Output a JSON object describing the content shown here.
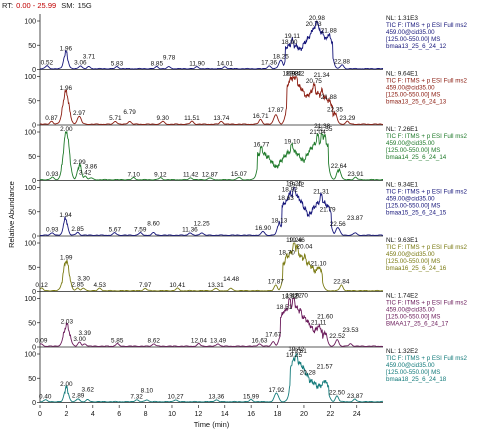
{
  "header": {
    "rt_label": "RT:",
    "rt_value": "0.00 - 25.99",
    "sm_label": "SM:",
    "sm_value": "15G"
  },
  "chart_data": {
    "type": "line",
    "xlabel": "Time (min)",
    "ylabel": "Relative Abundance",
    "xlim": [
      0,
      25.99
    ],
    "x_ticks": [
      0,
      2,
      4,
      6,
      8,
      10,
      12,
      14,
      16,
      18,
      20,
      22,
      24
    ],
    "y_ticks": [
      0,
      50,
      100
    ],
    "ylim": [
      0,
      100
    ],
    "grid": false,
    "panels": [
      {
        "color": "#15157a",
        "nl": "NL: 1.31E3",
        "info": [
          "TIC F: ITMS + p ESI Full ms2",
          "459.00@cid35.00",
          "[125.00-550.00]  MS",
          "bmaa13_25_6_24_12"
        ],
        "peaks": [
          {
            "x": 0.52,
            "y": 6,
            "label": "0.52"
          },
          {
            "x": 1.96,
            "y": 35,
            "label": "1.96"
          },
          {
            "x": 3.06,
            "y": 6,
            "label": "3.06"
          },
          {
            "x": 3.71,
            "y": 4,
            "label": "3.71"
          },
          {
            "x": 5.83,
            "y": 4,
            "label": "5.83"
          },
          {
            "x": 8.85,
            "y": 4,
            "label": "8.85"
          },
          {
            "x": 9.78,
            "y": 4,
            "label": "9.78"
          },
          {
            "x": 11.9,
            "y": 4,
            "label": "11.90"
          },
          {
            "x": 14.01,
            "y": 4,
            "label": "14.01"
          },
          {
            "x": 17.36,
            "y": 6,
            "label": "17.36"
          },
          {
            "x": 18.25,
            "y": 18,
            "label": "18.25"
          },
          {
            "x": 18.9,
            "y": 48,
            "label": "18.90"
          },
          {
            "x": 19.11,
            "y": 60,
            "label": "19.11"
          },
          {
            "x": 20.73,
            "y": 86,
            "label": "20.73"
          },
          {
            "x": 20.98,
            "y": 100,
            "label": "20.98"
          },
          {
            "x": 21.88,
            "y": 72,
            "label": "21.88"
          },
          {
            "x": 22.88,
            "y": 8,
            "label": "22.88"
          }
        ]
      },
      {
        "color": "#8a1a0e",
        "nl": "NL: 9.64E1",
        "info": [
          "TIC F: ITMS + p ESI Full ms2",
          "459.00@cid35.00",
          "[125.00-550.00]  MS",
          "bmaa13_25_6_24_13"
        ],
        "peaks": [
          {
            "x": 0.87,
            "y": 6,
            "label": "0.87"
          },
          {
            "x": 1.96,
            "y": 68,
            "label": "1.96"
          },
          {
            "x": 2.97,
            "y": 16,
            "label": "2.97"
          },
          {
            "x": 5.71,
            "y": 6,
            "label": "5.71"
          },
          {
            "x": 6.79,
            "y": 6,
            "label": "6.79"
          },
          {
            "x": 9.3,
            "y": 6,
            "label": "9.30"
          },
          {
            "x": 11.51,
            "y": 6,
            "label": "11.51"
          },
          {
            "x": 13.74,
            "y": 6,
            "label": "13.74"
          },
          {
            "x": 16.71,
            "y": 10,
            "label": "16.71"
          },
          {
            "x": 17.87,
            "y": 20,
            "label": "17.87"
          },
          {
            "x": 18.98,
            "y": 98,
            "label": "18.98"
          },
          {
            "x": 19.22,
            "y": 100,
            "label": "19.22"
          },
          {
            "x": 19.42,
            "y": 98,
            "label": "19.42"
          },
          {
            "x": 20.75,
            "y": 82,
            "label": "20.75"
          },
          {
            "x": 21.34,
            "y": 70,
            "label": "21.34"
          },
          {
            "x": 21.88,
            "y": 50,
            "label": "21.88"
          },
          {
            "x": 22.35,
            "y": 24,
            "label": "22.35"
          },
          {
            "x": 23.29,
            "y": 6,
            "label": "23.29"
          }
        ]
      },
      {
        "color": "#1f7a2a",
        "nl": "NL: 7.26E1",
        "info": [
          "TIC F: ITMS + p ESI Full ms2",
          "459.00@cid35.00",
          "[125.00-550.00]  MS",
          "bmaa14_25_6_24_14"
        ],
        "peaks": [
          {
            "x": 0.93,
            "y": 5,
            "label": "0.93"
          },
          {
            "x": 2.0,
            "y": 100,
            "label": "2.00"
          },
          {
            "x": 2.99,
            "y": 30,
            "label": "2.99"
          },
          {
            "x": 3.42,
            "y": 8,
            "label": "3.42"
          },
          {
            "x": 3.86,
            "y": 4,
            "label": "3.86"
          },
          {
            "x": 7.1,
            "y": 4,
            "label": "7.10"
          },
          {
            "x": 9.12,
            "y": 4,
            "label": "9.12"
          },
          {
            "x": 11.42,
            "y": 4,
            "label": "11.42"
          },
          {
            "x": 12.87,
            "y": 4,
            "label": "12.87"
          },
          {
            "x": 15.07,
            "y": 5,
            "label": "15.07"
          },
          {
            "x": 16.77,
            "y": 66,
            "label": "16.77"
          },
          {
            "x": 19.1,
            "y": 72,
            "label": "19.10"
          },
          {
            "x": 21.04,
            "y": 92,
            "label": "21.04"
          },
          {
            "x": 21.38,
            "y": 94,
            "label": "21.38"
          },
          {
            "x": 21.55,
            "y": 92,
            "label": "21.55"
          },
          {
            "x": 22.64,
            "y": 22,
            "label": "22.64"
          },
          {
            "x": 23.91,
            "y": 5,
            "label": "23.91"
          }
        ]
      },
      {
        "color": "#15157a",
        "nl": "NL: 9.34E1",
        "info": [
          "TIC F: ITMS + p ESI Full ms2",
          "459.00@cid35.00",
          "[125.00-550.00]  MS",
          "bmaa15_25_6_24_15"
        ],
        "peaks": [
          {
            "x": 0.93,
            "y": 5,
            "label": "0.93"
          },
          {
            "x": 1.94,
            "y": 35,
            "label": "1.94"
          },
          {
            "x": 2.85,
            "y": 6,
            "label": "2.85"
          },
          {
            "x": 5.67,
            "y": 5,
            "label": "5.67"
          },
          {
            "x": 7.59,
            "y": 5,
            "label": "7.59"
          },
          {
            "x": 8.6,
            "y": 5,
            "label": "8.60"
          },
          {
            "x": 11.36,
            "y": 5,
            "label": "11.36"
          },
          {
            "x": 12.25,
            "y": 5,
            "label": "12.25"
          },
          {
            "x": 16.9,
            "y": 8,
            "label": "16.90"
          },
          {
            "x": 18.13,
            "y": 24,
            "label": "18.13"
          },
          {
            "x": 18.63,
            "y": 70,
            "label": "18.63"
          },
          {
            "x": 18.92,
            "y": 88,
            "label": "18.92"
          },
          {
            "x": 19.25,
            "y": 100,
            "label": "19.25"
          },
          {
            "x": 19.42,
            "y": 86,
            "label": "19.42"
          },
          {
            "x": 21.31,
            "y": 84,
            "label": "21.31"
          },
          {
            "x": 21.79,
            "y": 46,
            "label": "21.79"
          },
          {
            "x": 22.56,
            "y": 16,
            "label": "22.56"
          },
          {
            "x": 23.87,
            "y": 5,
            "label": "23.87"
          }
        ]
      },
      {
        "color": "#7a7a12",
        "nl": "NL: 9.63E1",
        "info": [
          "TIC F: ITMS + p ESI Full ms2",
          "459.00@cid35.00",
          "[125.00-550.00]  MS",
          "bmaa16_25_6_24_16"
        ],
        "peaks": [
          {
            "x": 0.12,
            "y": 5,
            "label": "0.12"
          },
          {
            "x": 1.99,
            "y": 62,
            "label": "1.99"
          },
          {
            "x": 2.85,
            "y": 6,
            "label": "2.85"
          },
          {
            "x": 3.3,
            "y": 5,
            "label": "3.30"
          },
          {
            "x": 4.53,
            "y": 5,
            "label": "4.53"
          },
          {
            "x": 7.97,
            "y": 5,
            "label": "7.97"
          },
          {
            "x": 10.41,
            "y": 5,
            "label": "10.41"
          },
          {
            "x": 13.31,
            "y": 5,
            "label": "13.31"
          },
          {
            "x": 14.48,
            "y": 5,
            "label": "14.48"
          },
          {
            "x": 17.87,
            "y": 12,
            "label": "17.87"
          },
          {
            "x": 18.7,
            "y": 72,
            "label": "18.70"
          },
          {
            "x": 19.26,
            "y": 100,
            "label": "19.26"
          },
          {
            "x": 19.46,
            "y": 92,
            "label": "19.46"
          },
          {
            "x": 20.04,
            "y": 72,
            "label": "20.04"
          },
          {
            "x": 21.1,
            "y": 50,
            "label": "21.10"
          },
          {
            "x": 22.84,
            "y": 12,
            "label": "22.84"
          }
        ]
      },
      {
        "color": "#6a1a5a",
        "nl": "NL: 1.74E2",
        "info": [
          "TIC F: ITMS + p ESI Full ms2",
          "459.00@cid35.00",
          "[125.00-550.00]  MS",
          "BMAA17_25_6_24_17"
        ],
        "peaks": [
          {
            "x": 0.09,
            "y": 5,
            "label": "0.09"
          },
          {
            "x": 2.03,
            "y": 44,
            "label": "2.03"
          },
          {
            "x": 3.0,
            "y": 8,
            "label": "3.00"
          },
          {
            "x": 3.39,
            "y": 5,
            "label": "3.39"
          },
          {
            "x": 5.85,
            "y": 5,
            "label": "5.85"
          },
          {
            "x": 8.62,
            "y": 5,
            "label": "8.62"
          },
          {
            "x": 12.04,
            "y": 5,
            "label": "12.04"
          },
          {
            "x": 13.49,
            "y": 5,
            "label": "13.49"
          },
          {
            "x": 16.63,
            "y": 5,
            "label": "16.63"
          },
          {
            "x": 17.67,
            "y": 10,
            "label": "17.67"
          },
          {
            "x": 18.51,
            "y": 74,
            "label": "18.51"
          },
          {
            "x": 18.92,
            "y": 96,
            "label": "18.92"
          },
          {
            "x": 19.22,
            "y": 100,
            "label": "19.22"
          },
          {
            "x": 19.7,
            "y": 76,
            "label": "19.70"
          },
          {
            "x": 21.11,
            "y": 42,
            "label": "21.11"
          },
          {
            "x": 21.6,
            "y": 30,
            "label": "21.60"
          },
          {
            "x": 22.52,
            "y": 14,
            "label": "22.52"
          },
          {
            "x": 23.53,
            "y": 5,
            "label": "23.53"
          }
        ]
      },
      {
        "color": "#127a7a",
        "nl": "NL: 1.32E2",
        "info": [
          "TIC F: ITMS + p ESI Full ms2",
          "459.00@cid35.00",
          "[125.00-550.00]  MS",
          "bmaa18_25_6_24_18"
        ],
        "peaks": [
          {
            "x": 0.4,
            "y": 4,
            "label": "0.40"
          },
          {
            "x": 2.0,
            "y": 30,
            "label": "2.00"
          },
          {
            "x": 2.89,
            "y": 6,
            "label": "2.89"
          },
          {
            "x": 3.62,
            "y": 4,
            "label": "3.62"
          },
          {
            "x": 7.32,
            "y": 4,
            "label": "7.32"
          },
          {
            "x": 8.1,
            "y": 4,
            "label": "8.10"
          },
          {
            "x": 10.27,
            "y": 4,
            "label": "10.27"
          },
          {
            "x": 13.36,
            "y": 4,
            "label": "13.36"
          },
          {
            "x": 15.99,
            "y": 4,
            "label": "15.99"
          },
          {
            "x": 17.92,
            "y": 18,
            "label": "17.92"
          },
          {
            "x": 19.25,
            "y": 90,
            "label": "19.25"
          },
          {
            "x": 19.42,
            "y": 100,
            "label": "19.42"
          },
          {
            "x": 19.61,
            "y": 82,
            "label": "19.61"
          },
          {
            "x": 20.28,
            "y": 54,
            "label": "20.28"
          },
          {
            "x": 21.57,
            "y": 44,
            "label": "21.57"
          },
          {
            "x": 22.5,
            "y": 12,
            "label": "22.50"
          },
          {
            "x": 23.87,
            "y": 5,
            "label": "23.87"
          }
        ]
      }
    ]
  }
}
